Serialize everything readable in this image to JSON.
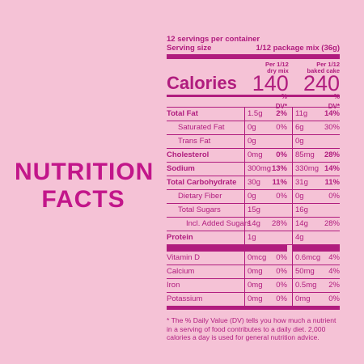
{
  "headline": {
    "line1": "NUTRITION",
    "line2": "FACTS"
  },
  "label": {
    "servings_per_container": "12 servings per container",
    "serving_size_label": "Serving size",
    "serving_size_value": "1/12 package mix (36g)",
    "calories_label": "Calories",
    "col1_head_line1": "Per 1/12",
    "col1_head_line2": "dry mix",
    "col2_head_line1": "Per 1/12",
    "col2_head_line2": "baked cake",
    "calories_dry": "140",
    "calories_baked": "240",
    "dv_head": "% DV*",
    "rows": [
      {
        "name": "Total Fat",
        "a1": "1.5g",
        "d1": "2%",
        "a2": "11g",
        "d2": "14%"
      },
      {
        "name": "Saturated Fat",
        "a1": "0g",
        "d1": "0%",
        "a2": "6g",
        "d2": "30%"
      },
      {
        "name": "Trans Fat",
        "a1": "0g",
        "d1": "",
        "a2": "0g",
        "d2": ""
      },
      {
        "name": "Cholesterol",
        "a1": "0mg",
        "d1": "0%",
        "a2": "85mg",
        "d2": "28%"
      },
      {
        "name": "Sodium",
        "a1": "300mg",
        "d1": "13%",
        "a2": "330mg",
        "d2": "14%"
      },
      {
        "name": "Total Carbohydrate",
        "a1": "30g",
        "d1": "11%",
        "a2": "31g",
        "d2": "11%"
      },
      {
        "name": "Dietary Fiber",
        "a1": "0g",
        "d1": "0%",
        "a2": "0g",
        "d2": "0%"
      },
      {
        "name": "Total Sugars",
        "a1": "15g",
        "d1": "",
        "a2": "16g",
        "d2": ""
      },
      {
        "name": "Incl. Added Sugars",
        "a1": "14g",
        "d1": "28%",
        "a2": "14g",
        "d2": "28%"
      },
      {
        "name": "Protein",
        "a1": "1g",
        "d1": "",
        "a2": "4g",
        "d2": ""
      },
      {
        "name": "Vitamin D",
        "a1": "0mcg",
        "d1": "0%",
        "a2": "0.6mcg",
        "d2": "4%"
      },
      {
        "name": "Calcium",
        "a1": "0mg",
        "d1": "0%",
        "a2": "50mg",
        "d2": "4%"
      },
      {
        "name": "Iron",
        "a1": "0mg",
        "d1": "0%",
        "a2": "0.5mg",
        "d2": "2%"
      },
      {
        "name": "Potassium",
        "a1": "0mg",
        "d1": "0%",
        "a2": "0mg",
        "d2": "0%"
      }
    ],
    "footnote": "* The % Daily Value (DV) tells you how much a nutrient in a serving of food contributes to a daily diet. 2,000 calories a day is used for general nutrition advice."
  },
  "colors": {
    "background": "#f5c2d6",
    "ink": "#b01c7e",
    "headline": "#c2168a"
  }
}
